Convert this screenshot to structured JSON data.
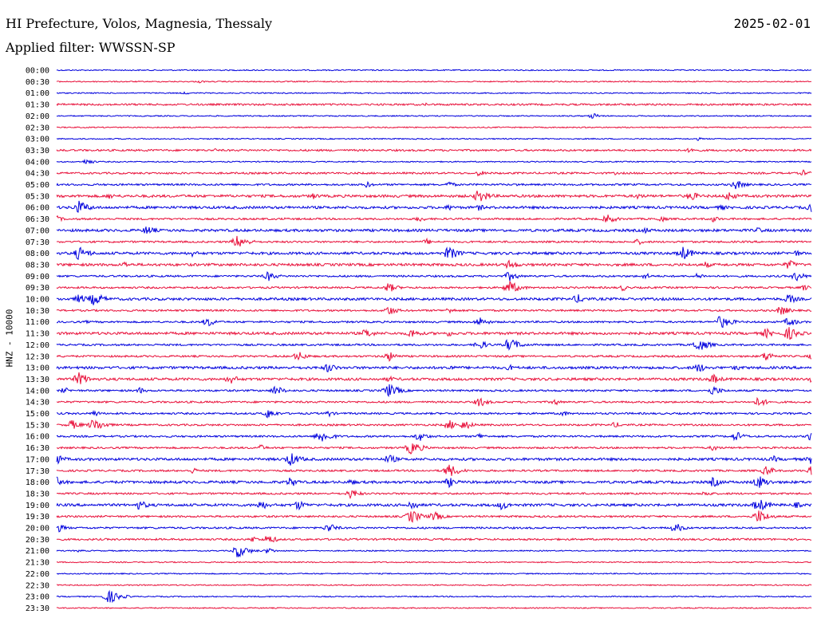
{
  "header": {
    "title": "HI Prefecture, Volos, Magnesia, Thessaly",
    "filter": "Applied filter: WWSSN-SP",
    "date": "2025-02-01"
  },
  "chart_data": {
    "type": "line",
    "title": "HI Prefecture, Volos, Magnesia, Thessaly",
    "subtitle": "Applied filter: WWSSN-SP",
    "date": "2025-02-01",
    "ylabel": "HNZ - 10000",
    "grid": false,
    "series_colors": [
      "#0000dd",
      "#e8103a"
    ],
    "traces": [
      {
        "time": "00:00",
        "activity": 1,
        "events": []
      },
      {
        "time": "00:30",
        "activity": 1,
        "events": [
          [
            0.19,
            1
          ]
        ]
      },
      {
        "time": "01:00",
        "activity": 1,
        "events": [
          [
            0.17,
            1
          ]
        ]
      },
      {
        "time": "01:30",
        "activity": 2,
        "events": [
          [
            0.49,
            1
          ]
        ]
      },
      {
        "time": "02:00",
        "activity": 1,
        "events": [
          [
            0.71,
            2
          ]
        ]
      },
      {
        "time": "02:30",
        "activity": 1,
        "events": []
      },
      {
        "time": "03:00",
        "activity": 1,
        "events": [
          [
            0.85,
            1
          ]
        ]
      },
      {
        "time": "03:30",
        "activity": 2,
        "events": [
          [
            0.12,
            1
          ],
          [
            0.21,
            1
          ],
          [
            0.84,
            2
          ]
        ]
      },
      {
        "time": "04:00",
        "activity": 1,
        "events": [
          [
            0.04,
            2
          ]
        ]
      },
      {
        "time": "04:30",
        "activity": 2,
        "events": [
          [
            0.56,
            2
          ],
          [
            0.74,
            1
          ],
          [
            0.99,
            2
          ]
        ]
      },
      {
        "time": "05:00",
        "activity": 2,
        "events": [
          [
            0.41,
            2
          ],
          [
            0.52,
            2
          ],
          [
            0.61,
            1
          ],
          [
            0.9,
            3
          ]
        ]
      },
      {
        "time": "05:30",
        "activity": 3,
        "events": [
          [
            0.07,
            2
          ],
          [
            0.34,
            2
          ],
          [
            0.56,
            4
          ],
          [
            0.77,
            2
          ],
          [
            0.84,
            3
          ],
          [
            0.89,
            3
          ]
        ]
      },
      {
        "time": "06:00",
        "activity": 3,
        "events": [
          [
            0.03,
            4
          ],
          [
            0.52,
            2
          ],
          [
            0.56,
            2
          ],
          [
            0.88,
            2
          ],
          [
            1.0,
            3
          ]
        ]
      },
      {
        "time": "06:30",
        "activity": 2,
        "events": [
          [
            0.0,
            2
          ],
          [
            0.3,
            1
          ],
          [
            0.48,
            2
          ],
          [
            0.73,
            3
          ],
          [
            0.8,
            2
          ],
          [
            0.87,
            2
          ]
        ]
      },
      {
        "time": "07:00",
        "activity": 3,
        "events": [
          [
            0.12,
            3
          ],
          [
            0.78,
            2
          ],
          [
            0.93,
            2
          ]
        ]
      },
      {
        "time": "07:30",
        "activity": 2,
        "events": [
          [
            0.24,
            4
          ],
          [
            0.49,
            2
          ],
          [
            0.77,
            2
          ],
          [
            0.96,
            1
          ]
        ]
      },
      {
        "time": "08:00",
        "activity": 3,
        "events": [
          [
            0.03,
            4
          ],
          [
            0.18,
            2
          ],
          [
            0.52,
            4
          ],
          [
            0.83,
            4
          ],
          [
            0.98,
            2
          ]
        ]
      },
      {
        "time": "08:30",
        "activity": 3,
        "events": [
          [
            0.09,
            2
          ],
          [
            0.6,
            3
          ],
          [
            0.86,
            2
          ],
          [
            0.97,
            3
          ]
        ]
      },
      {
        "time": "09:00",
        "activity": 2,
        "events": [
          [
            0.28,
            3
          ],
          [
            0.6,
            3
          ],
          [
            0.78,
            2
          ],
          [
            0.85,
            2
          ],
          [
            0.98,
            3
          ]
        ]
      },
      {
        "time": "09:30",
        "activity": 2,
        "events": [
          [
            0.44,
            3
          ],
          [
            0.6,
            4
          ],
          [
            0.75,
            2
          ],
          [
            0.99,
            2
          ]
        ]
      },
      {
        "time": "10:00",
        "activity": 3,
        "events": [
          [
            0.03,
            3
          ],
          [
            0.05,
            4
          ],
          [
            0.69,
            3
          ],
          [
            0.97,
            3
          ]
        ]
      },
      {
        "time": "10:30",
        "activity": 2,
        "events": [
          [
            0.44,
            3
          ],
          [
            0.52,
            2
          ],
          [
            0.96,
            3
          ]
        ]
      },
      {
        "time": "11:00",
        "activity": 2,
        "events": [
          [
            0.04,
            1
          ],
          [
            0.2,
            3
          ],
          [
            0.56,
            3
          ],
          [
            0.88,
            4
          ],
          [
            0.97,
            3
          ]
        ]
      },
      {
        "time": "11:30",
        "activity": 3,
        "events": [
          [
            0.41,
            3
          ],
          [
            0.47,
            3
          ],
          [
            0.52,
            2
          ],
          [
            0.94,
            3
          ],
          [
            0.97,
            4
          ]
        ]
      },
      {
        "time": "12:00",
        "activity": 2,
        "events": [
          [
            0.56,
            3
          ],
          [
            0.6,
            4
          ],
          [
            0.85,
            4
          ]
        ]
      },
      {
        "time": "12:30",
        "activity": 2,
        "events": [
          [
            0.32,
            3
          ],
          [
            0.44,
            3
          ],
          [
            0.94,
            3
          ],
          [
            1.0,
            2
          ]
        ]
      },
      {
        "time": "13:00",
        "activity": 3,
        "events": [
          [
            0.36,
            3
          ],
          [
            0.52,
            2
          ],
          [
            0.6,
            2
          ],
          [
            0.85,
            3
          ],
          [
            0.9,
            2
          ]
        ]
      },
      {
        "time": "13:30",
        "activity": 3,
        "events": [
          [
            0.03,
            4
          ],
          [
            0.23,
            3
          ],
          [
            0.44,
            2
          ],
          [
            0.87,
            3
          ],
          [
            1.0,
            2
          ]
        ]
      },
      {
        "time": "14:00",
        "activity": 2,
        "events": [
          [
            0.01,
            2
          ],
          [
            0.11,
            2
          ],
          [
            0.29,
            3
          ],
          [
            0.44,
            4
          ],
          [
            0.87,
            3
          ]
        ]
      },
      {
        "time": "14:30",
        "activity": 2,
        "events": [
          [
            0.56,
            3
          ],
          [
            0.66,
            2
          ],
          [
            0.93,
            3
          ]
        ]
      },
      {
        "time": "15:00",
        "activity": 2,
        "events": [
          [
            0.05,
            2
          ],
          [
            0.28,
            3
          ],
          [
            0.36,
            2
          ],
          [
            0.67,
            2
          ]
        ]
      },
      {
        "time": "15:30",
        "activity": 2,
        "events": [
          [
            0.02,
            3
          ],
          [
            0.05,
            4
          ],
          [
            0.52,
            3
          ],
          [
            0.54,
            3
          ],
          [
            0.74,
            2
          ]
        ]
      },
      {
        "time": "16:00",
        "activity": 2,
        "events": [
          [
            0.35,
            4
          ],
          [
            0.48,
            3
          ],
          [
            0.56,
            2
          ],
          [
            0.9,
            3
          ],
          [
            1.0,
            3
          ]
        ]
      },
      {
        "time": "16:30",
        "activity": 2,
        "events": [
          [
            0.27,
            2
          ],
          [
            0.47,
            4
          ],
          [
            0.87,
            2
          ]
        ]
      },
      {
        "time": "17:00",
        "activity": 3,
        "events": [
          [
            0.0,
            3
          ],
          [
            0.31,
            4
          ],
          [
            0.44,
            3
          ],
          [
            0.95,
            2
          ],
          [
            1.0,
            3
          ]
        ]
      },
      {
        "time": "17:30",
        "activity": 2,
        "events": [
          [
            0.18,
            2
          ],
          [
            0.52,
            4
          ],
          [
            0.94,
            3
          ],
          [
            1.0,
            3
          ]
        ]
      },
      {
        "time": "18:00",
        "activity": 3,
        "events": [
          [
            0.0,
            3
          ],
          [
            0.31,
            3
          ],
          [
            0.39,
            2
          ],
          [
            0.52,
            3
          ],
          [
            0.87,
            3
          ],
          [
            0.93,
            4
          ]
        ]
      },
      {
        "time": "18:30",
        "activity": 2,
        "events": [
          [
            0.39,
            3
          ],
          [
            0.86,
            2
          ]
        ]
      },
      {
        "time": "19:00",
        "activity": 3,
        "events": [
          [
            0.11,
            3
          ],
          [
            0.27,
            3
          ],
          [
            0.32,
            3
          ],
          [
            0.47,
            3
          ],
          [
            0.59,
            3
          ],
          [
            0.93,
            4
          ],
          [
            0.98,
            2
          ]
        ]
      },
      {
        "time": "19:30",
        "activity": 2,
        "events": [
          [
            0.47,
            4
          ],
          [
            0.5,
            3
          ],
          [
            0.93,
            4
          ]
        ]
      },
      {
        "time": "20:00",
        "activity": 2,
        "events": [
          [
            0.0,
            3
          ],
          [
            0.36,
            3
          ],
          [
            0.82,
            3
          ]
        ]
      },
      {
        "time": "20:30",
        "activity": 2,
        "events": [
          [
            0.26,
            2
          ],
          [
            0.28,
            3
          ]
        ]
      },
      {
        "time": "21:00",
        "activity": 1,
        "events": [
          [
            0.03,
            1
          ],
          [
            0.24,
            4
          ],
          [
            0.28,
            2
          ]
        ]
      },
      {
        "time": "21:30",
        "activity": 1,
        "events": []
      },
      {
        "time": "22:00",
        "activity": 1,
        "events": []
      },
      {
        "time": "22:30",
        "activity": 1,
        "events": []
      },
      {
        "time": "23:00",
        "activity": 1,
        "events": [
          [
            0.07,
            4
          ]
        ]
      },
      {
        "time": "23:30",
        "activity": 1,
        "events": []
      }
    ]
  }
}
